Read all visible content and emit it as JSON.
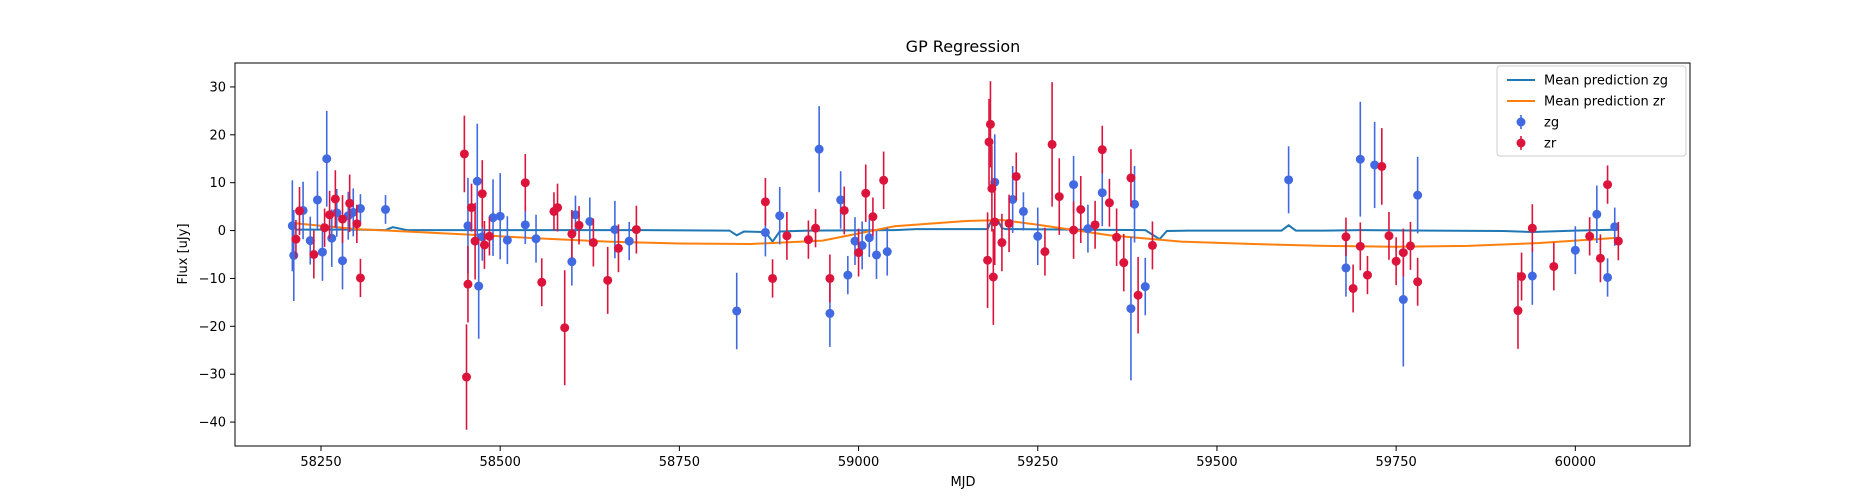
{
  "chart_data": {
    "type": "scatter",
    "title": "GP Regression",
    "xlabel": "MJD",
    "ylabel": "Flux [uJy]",
    "xlim": [
      58130,
      60160
    ],
    "ylim": [
      -45,
      35
    ],
    "xticks": [
      58250,
      58500,
      58750,
      59000,
      59250,
      59500,
      59750,
      60000
    ],
    "yticks": [
      -40,
      -30,
      -20,
      -10,
      0,
      10,
      20,
      30
    ],
    "grid": false,
    "legend_placement": "top-right",
    "legend": [
      "Mean prediction zg",
      "Mean prediction zr",
      "zg",
      "zr"
    ],
    "colors": {
      "mean_zg": "#1f77b4",
      "mean_zr": "#ff7f0e",
      "zg": "#4169e1",
      "zr": "#dc143c"
    },
    "series": [
      {
        "name": "Mean prediction zg",
        "kind": "line",
        "color": "#1f77b4",
        "x": [
          58215,
          58300,
          58340,
          58350,
          58370,
          58520,
          58700,
          58820,
          58830,
          58840,
          58870,
          58880,
          58890,
          58930,
          59050,
          59080,
          59180,
          59185,
          59195,
          59200,
          59205,
          59300,
          59400,
          59420,
          59430,
          59460,
          59550,
          59590,
          59600,
          59610,
          59650,
          59700,
          59800,
          59900,
          59940,
          60000,
          60060
        ],
        "y": [
          0.2,
          0.2,
          0.1,
          0.7,
          0.1,
          0.1,
          0.1,
          0.0,
          -1.0,
          -0.2,
          -0.3,
          -2.3,
          -0.2,
          0.0,
          0.1,
          0.3,
          0.3,
          2.0,
          2.0,
          0.5,
          0.3,
          0.2,
          0.1,
          -1.8,
          -0.1,
          0.0,
          0.0,
          0.0,
          1.1,
          0.0,
          0.0,
          0.1,
          0.0,
          -0.1,
          -0.3,
          0.0,
          0.2
        ]
      },
      {
        "name": "Mean prediction zr",
        "kind": "line",
        "color": "#ff7f0e",
        "x": [
          58215,
          58300,
          58450,
          58550,
          58650,
          58750,
          58850,
          58950,
          59050,
          59150,
          59200,
          59250,
          59350,
          59450,
          59550,
          59650,
          59750,
          59850,
          59950,
          60060
        ],
        "y": [
          1.5,
          0.3,
          -0.8,
          -1.6,
          -2.3,
          -2.7,
          -2.8,
          -2.1,
          0.9,
          2.0,
          2.2,
          1.2,
          -1.0,
          -2.3,
          -2.8,
          -3.2,
          -3.4,
          -3.2,
          -2.6,
          -1.5
        ]
      },
      {
        "name": "zg",
        "kind": "errorbar",
        "color": "#4169e1",
        "x": [
          58210,
          58212,
          58225,
          58235,
          58245,
          58252,
          58258,
          58265,
          58272,
          58280,
          58288,
          58295,
          58305,
          58340,
          58455,
          58468,
          58470,
          58475,
          58490,
          58500,
          58510,
          58535,
          58550,
          58600,
          58605,
          58625,
          58660,
          58680,
          58830,
          58870,
          58890,
          58945,
          58960,
          58975,
          58985,
          58995,
          59005,
          59015,
          59025,
          59040,
          59190,
          59215,
          59230,
          59250,
          59300,
          59320,
          59340,
          59380,
          59385,
          59400,
          59600,
          59680,
          59700,
          59720,
          59760,
          59780,
          59940,
          60000,
          60030,
          60045,
          60055
        ],
        "y": [
          1,
          -5.2,
          4.2,
          -2.1,
          6.4,
          -4.5,
          15,
          -1.6,
          3.7,
          -6.3,
          3.1,
          3.8,
          4.6,
          4.4,
          1,
          10.3,
          -11.6,
          -1.3,
          2.7,
          3,
          -2,
          1.2,
          -1.7,
          -6.5,
          3.3,
          1.9,
          0.2,
          -2.2,
          -16.8,
          -0.4,
          3.1,
          17,
          -17.3,
          6.4,
          -9.3,
          -2.2,
          -3.1,
          -1.5,
          -5.1,
          -4.4,
          10.1,
          6.5,
          4,
          -1.2,
          9.6,
          0.4,
          7.9,
          -16.3,
          5.5,
          -11.7,
          10.6,
          -7.8,
          14.9,
          13.7,
          -14.4,
          7.4,
          -9.5,
          -4.1,
          3.4,
          -9.8,
          0.8
        ],
        "err": [
          9.5,
          9.5,
          6,
          5,
          6,
          6,
          10,
          6,
          5,
          6,
          5,
          5,
          3,
          3,
          10,
          12,
          11,
          5,
          8,
          9,
          5,
          4,
          5,
          5,
          4,
          5,
          6,
          4,
          8,
          5,
          6,
          9,
          7,
          6,
          4,
          5,
          5,
          4,
          5,
          5,
          10,
          7,
          4,
          6,
          6,
          5,
          7,
          15,
          8,
          6,
          7,
          6,
          12,
          9,
          14,
          8,
          6,
          5,
          6,
          4,
          4
        ]
      },
      {
        "name": "zr",
        "kind": "errorbar",
        "color": "#dc143c",
        "x": [
          58215,
          58220,
          58240,
          58255,
          58262,
          58270,
          58280,
          58290,
          58300,
          58305,
          58450,
          58453,
          58455,
          58460,
          58465,
          58475,
          58478,
          58485,
          58535,
          58558,
          58575,
          58580,
          58590,
          58600,
          58610,
          58630,
          58650,
          58665,
          58690,
          58870,
          58880,
          58900,
          58930,
          58940,
          58960,
          58980,
          59000,
          59010,
          59020,
          59035,
          59180,
          59182,
          59184,
          59186,
          59188,
          59190,
          59200,
          59210,
          59220,
          59260,
          59270,
          59280,
          59300,
          59310,
          59330,
          59340,
          59350,
          59360,
          59370,
          59380,
          59390,
          59410,
          59680,
          59690,
          59700,
          59710,
          59730,
          59740,
          59750,
          59760,
          59770,
          59780,
          59920,
          59925,
          59940,
          59970,
          60020,
          60035,
          60045,
          60060
        ],
        "y": [
          -1.8,
          4.1,
          -5,
          0.6,
          3.3,
          6.6,
          2.4,
          5.7,
          1.4,
          -9.9,
          16,
          -30.6,
          -11.2,
          4.8,
          -2.2,
          7.7,
          -3,
          -1.2,
          10,
          -10.8,
          4,
          4.8,
          -20.3,
          -0.7,
          1.1,
          -2.5,
          -10.4,
          -3.7,
          0.2,
          6,
          -10,
          -1.1,
          -1.9,
          0.5,
          -10,
          4.2,
          -4.6,
          7.8,
          2.9,
          10.5,
          -6.2,
          18.5,
          22.2,
          8.8,
          -9.7,
          1.8,
          -2.5,
          1.5,
          11.3,
          -4.4,
          18,
          7.1,
          0.1,
          4.4,
          1.2,
          16.9,
          5.8,
          -1.4,
          -6.7,
          11,
          -13.5,
          -3.1,
          -1.3,
          -12.1,
          -3.3,
          -9.3,
          13.4,
          -1.1,
          -6.4,
          -4.6,
          -3.2,
          -10.7,
          -16.7,
          -9.6,
          0.5,
          -7.5,
          -1.2,
          -5.8,
          9.6,
          -2.2
        ],
        "err": [
          4,
          5,
          5,
          4,
          5,
          6,
          5,
          6,
          4,
          4,
          8,
          11,
          8,
          5,
          8,
          7,
          5,
          4,
          6,
          5,
          4,
          5,
          12,
          5,
          4,
          5,
          7,
          5,
          5,
          5,
          4,
          5,
          4,
          4,
          5,
          5,
          5,
          6,
          4,
          6,
          10,
          9,
          9,
          9,
          10,
          9,
          6,
          6,
          5,
          5,
          13,
          8,
          6,
          7,
          5,
          5,
          5,
          6,
          6,
          6,
          8,
          5,
          4,
          5,
          5,
          4,
          8,
          5,
          5,
          5,
          5,
          5,
          8,
          5,
          5,
          5,
          4,
          5,
          4,
          4
        ]
      }
    ]
  }
}
